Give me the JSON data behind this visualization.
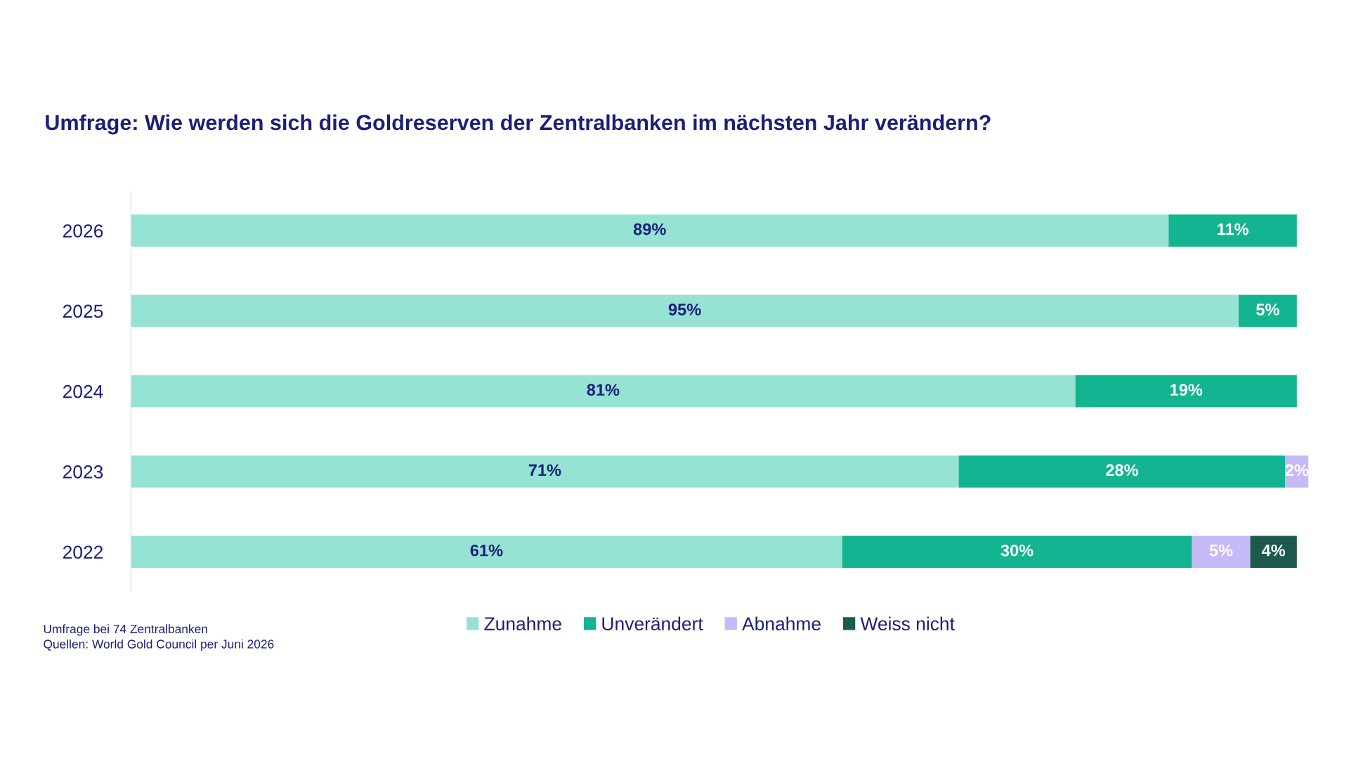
{
  "chart_data": {
    "type": "bar",
    "orientation": "horizontal",
    "stacked": true,
    "tick_labels": "y",
    "grid": false,
    "legend": "bottom",
    "title": "Umfrage: Wie werden sich die Goldreserven der Zentralbanken im nächsten Jahr verändern?",
    "categories": [
      "2026",
      "2025",
      "2024",
      "2023",
      "2022"
    ],
    "series": [
      {
        "name": "Zunahme",
        "color": "#96e3d4",
        "values": [
          89,
          95,
          81,
          71,
          61
        ],
        "value_labels": [
          "89%",
          "95%",
          "81%",
          "71%",
          "61%"
        ]
      },
      {
        "name": "Unverändert",
        "color": "#12b58f",
        "values": [
          11,
          5,
          19,
          28,
          30
        ],
        "value_labels": [
          "11%",
          "5%",
          "19%",
          "28%",
          "30%"
        ]
      },
      {
        "name": "Abnahme",
        "color": "#c5b9f6",
        "values": [
          null,
          null,
          null,
          2,
          5
        ],
        "value_labels": [
          null,
          null,
          null,
          "2%",
          "5%"
        ]
      },
      {
        "name": "Weiss nicht",
        "color": "#1d5a4e",
        "values": [
          null,
          null,
          null,
          null,
          4
        ],
        "value_labels": [
          null,
          null,
          null,
          null,
          "4%"
        ]
      }
    ],
    "annotations": [
      "Umfrage bei 74 Zentralbanken",
      "Quellen: World Gold Council per Juni 2026"
    ]
  }
}
